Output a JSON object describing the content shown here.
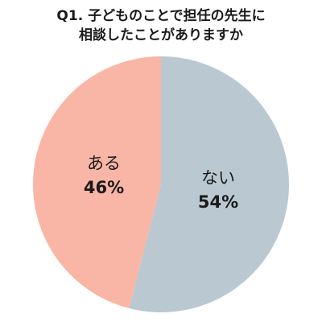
{
  "chart_data": {
    "type": "pie",
    "title": [
      "Q1. 子どものことで担任の先生に",
      "相談したことがありますか"
    ],
    "categories": [
      "ない",
      "ある"
    ],
    "values": [
      54,
      46
    ],
    "value_labels": [
      "54%",
      "46%"
    ],
    "colors": [
      "#bac8d1",
      "#f9b6a6"
    ]
  }
}
